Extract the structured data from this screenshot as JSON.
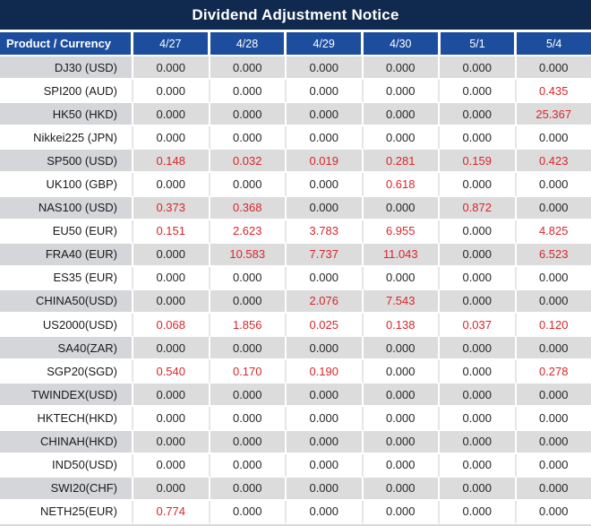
{
  "colors": {
    "title_bg": "#10294e",
    "header_bg": "#1d4e9e",
    "gray_row_bg": "#dcdcdc",
    "gray_product_bg": "#d4d6da",
    "white_row_bg": "#ffffff",
    "value_black": "#262626",
    "value_red": "#d9262b"
  },
  "chart_data": {
    "type": "table",
    "title": "Dividend Adjustment Notice",
    "columns": [
      "Product / Currency",
      "4/27",
      "4/28",
      "4/29",
      "4/30",
      "5/1",
      "5/4"
    ],
    "red_meaning": "non-zero dividend adjustment values are shown in red",
    "rows": [
      {
        "product": "DJ30 (USD)",
        "values": [
          "0.000",
          "0.000",
          "0.000",
          "0.000",
          "0.000",
          "0.000"
        ],
        "red": [
          false,
          false,
          false,
          false,
          false,
          false
        ]
      },
      {
        "product": "SPI200 (AUD)",
        "values": [
          "0.000",
          "0.000",
          "0.000",
          "0.000",
          "0.000",
          "0.435"
        ],
        "red": [
          false,
          false,
          false,
          false,
          false,
          true
        ]
      },
      {
        "product": "HK50 (HKD)",
        "values": [
          "0.000",
          "0.000",
          "0.000",
          "0.000",
          "0.000",
          "25.367"
        ],
        "red": [
          false,
          false,
          false,
          false,
          false,
          true
        ]
      },
      {
        "product": "Nikkei225 (JPN)",
        "values": [
          "0.000",
          "0.000",
          "0.000",
          "0.000",
          "0.000",
          "0.000"
        ],
        "red": [
          false,
          false,
          false,
          false,
          false,
          false
        ]
      },
      {
        "product": "SP500 (USD)",
        "values": [
          "0.148",
          "0.032",
          "0.019",
          "0.281",
          "0.159",
          "0.423"
        ],
        "red": [
          true,
          true,
          true,
          true,
          true,
          true
        ]
      },
      {
        "product": "UK100 (GBP)",
        "values": [
          "0.000",
          "0.000",
          "0.000",
          "0.618",
          "0.000",
          "0.000"
        ],
        "red": [
          false,
          false,
          false,
          true,
          false,
          false
        ]
      },
      {
        "product": "NAS100 (USD)",
        "values": [
          "0.373",
          "0.368",
          "0.000",
          "0.000",
          "0.872",
          "0.000"
        ],
        "red": [
          true,
          true,
          false,
          false,
          true,
          false
        ]
      },
      {
        "product": "EU50 (EUR)",
        "values": [
          "0.151",
          "2.623",
          "3.783",
          "6.955",
          "0.000",
          "4.825"
        ],
        "red": [
          true,
          true,
          true,
          true,
          false,
          true
        ]
      },
      {
        "product": "FRA40 (EUR)",
        "values": [
          "0.000",
          "10.583",
          "7.737",
          "11.043",
          "0.000",
          "6.523"
        ],
        "red": [
          false,
          true,
          true,
          true,
          false,
          true
        ]
      },
      {
        "product": "ES35 (EUR)",
        "values": [
          "0.000",
          "0.000",
          "0.000",
          "0.000",
          "0.000",
          "0.000"
        ],
        "red": [
          false,
          false,
          false,
          false,
          false,
          false
        ]
      },
      {
        "product": "CHINA50(USD)",
        "values": [
          "0.000",
          "0.000",
          "2.076",
          "7.543",
          "0.000",
          "0.000"
        ],
        "red": [
          false,
          false,
          true,
          true,
          false,
          false
        ]
      },
      {
        "product": "US2000(USD)",
        "values": [
          "0.068",
          "1.856",
          "0.025",
          "0.138",
          "0.037",
          "0.120"
        ],
        "red": [
          true,
          true,
          true,
          true,
          true,
          true
        ]
      },
      {
        "product": "SA40(ZAR)",
        "values": [
          "0.000",
          "0.000",
          "0.000",
          "0.000",
          "0.000",
          "0.000"
        ],
        "red": [
          false,
          false,
          false,
          false,
          false,
          false
        ]
      },
      {
        "product": "SGP20(SGD)",
        "values": [
          "0.540",
          "0.170",
          "0.190",
          "0.000",
          "0.000",
          "0.278"
        ],
        "red": [
          true,
          true,
          true,
          false,
          false,
          true
        ]
      },
      {
        "product": "TWINDEX(USD)",
        "values": [
          "0.000",
          "0.000",
          "0.000",
          "0.000",
          "0.000",
          "0.000"
        ],
        "red": [
          false,
          false,
          false,
          false,
          false,
          false
        ]
      },
      {
        "product": "HKTECH(HKD)",
        "values": [
          "0.000",
          "0.000",
          "0.000",
          "0.000",
          "0.000",
          "0.000"
        ],
        "red": [
          false,
          false,
          false,
          false,
          false,
          false
        ]
      },
      {
        "product": "CHINAH(HKD)",
        "values": [
          "0.000",
          "0.000",
          "0.000",
          "0.000",
          "0.000",
          "0.000"
        ],
        "red": [
          false,
          false,
          false,
          false,
          false,
          false
        ]
      },
      {
        "product": "IND50(USD)",
        "values": [
          "0.000",
          "0.000",
          "0.000",
          "0.000",
          "0.000",
          "0.000"
        ],
        "red": [
          false,
          false,
          false,
          false,
          false,
          false
        ]
      },
      {
        "product": "SWI20(CHF)",
        "values": [
          "0.000",
          "0.000",
          "0.000",
          "0.000",
          "0.000",
          "0.000"
        ],
        "red": [
          false,
          false,
          false,
          false,
          false,
          false
        ]
      },
      {
        "product": "NETH25(EUR)",
        "values": [
          "0.774",
          "0.000",
          "0.000",
          "0.000",
          "0.000",
          "0.000"
        ],
        "red": [
          true,
          false,
          false,
          false,
          false,
          false
        ]
      }
    ]
  }
}
